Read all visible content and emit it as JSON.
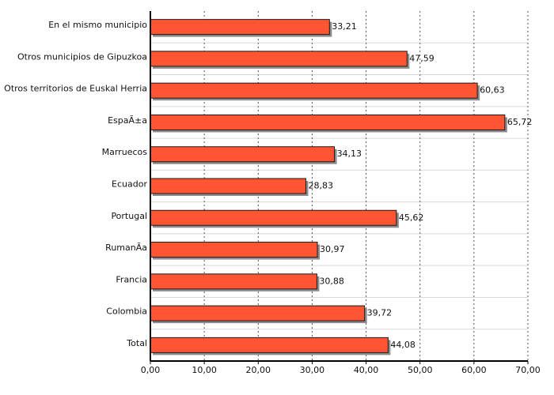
{
  "chart_data": {
    "type": "bar",
    "orientation": "horizontal",
    "categories": [
      "En el mismo municipio",
      "Otros municipios de Gipuzkoa",
      "Otros territorios de Euskal Herria",
      "EspaÃ±a",
      "Marruecos",
      "Ecuador",
      "Portugal",
      "RumanÃ­a",
      "Francia",
      "Colombia",
      "Total"
    ],
    "values": [
      33.21,
      47.59,
      60.63,
      65.72,
      34.13,
      28.83,
      45.62,
      30.97,
      30.88,
      39.72,
      44.08
    ],
    "value_labels": [
      "33,21",
      "47,59",
      "60,63",
      "65,72",
      "34,13",
      "28,83",
      "45,62",
      "30,97",
      "30,88",
      "39,72",
      "44,08"
    ],
    "xlim": [
      0,
      70
    ],
    "x_ticks": [
      0,
      10,
      20,
      30,
      40,
      50,
      60,
      70
    ],
    "x_tick_labels": [
      "0,00",
      "10,00",
      "20,00",
      "30,00",
      "40,00",
      "50,00",
      "60,00",
      "70,00"
    ],
    "grid": "vertical dotted",
    "legend": "none",
    "colors": {
      "bar_fill": "#ff5533",
      "bar_stroke": "#1a1a1a",
      "bar_shadow": "#8c8c8c",
      "grid": "#555555",
      "separator": "#d9d9d9",
      "axis": "#000000"
    }
  }
}
